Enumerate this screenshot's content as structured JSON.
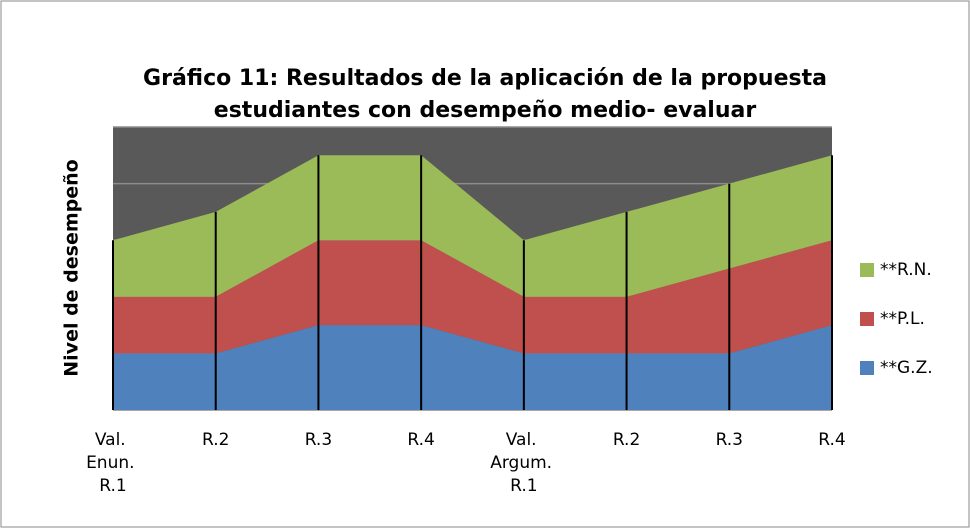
{
  "chart_data": {
    "type": "stacked_area",
    "title": [
      "Gráfico 11: Resultados de la aplicación de la propuesta",
      "estudiantes con desempeño medio- evaluar"
    ],
    "ylabel": "Nivel de desempeño",
    "categories": [
      "Val. Enun. R.1",
      "R.2",
      "R.3",
      "R.4",
      "Val. Argum. R.1",
      "R.2",
      "R.3",
      "R.4"
    ],
    "series": [
      {
        "name": "**G.Z.",
        "color": "#4f81bd",
        "values": [
          1,
          1,
          1.5,
          1.5,
          1,
          1,
          1,
          1.5
        ]
      },
      {
        "name": "**P.L.",
        "color": "#c0504d",
        "values": [
          1,
          1,
          1.5,
          1.5,
          1,
          1,
          1.5,
          1.5
        ]
      },
      {
        "name": "**R.N.",
        "color": "#9bbb59",
        "values": [
          1,
          1.5,
          1.5,
          1.5,
          1,
          1.5,
          1.5,
          1.5
        ]
      }
    ],
    "ylim": [
      0,
      5
    ],
    "yticks": [
      0,
      1,
      2,
      3,
      4,
      5
    ],
    "grid": true,
    "legend": "right"
  }
}
